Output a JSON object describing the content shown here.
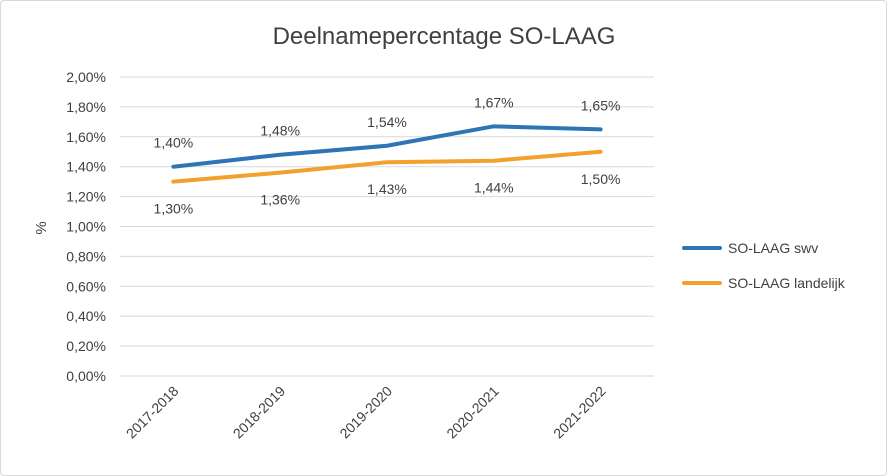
{
  "chart_data": {
    "type": "line",
    "title": "Deelnamepercentage SO-LAAG",
    "ylabel": "%",
    "xlabel": "",
    "categories": [
      "2017-2018",
      "2018-2019",
      "2019-2020",
      "2020-2021",
      "2021-2022"
    ],
    "ylim": [
      0,
      2.0
    ],
    "yticks": [
      0,
      0.2,
      0.4,
      0.6,
      0.8,
      1.0,
      1.2,
      1.4,
      1.6,
      1.8,
      2.0
    ],
    "ytick_labels": [
      "0,00%",
      "0,20%",
      "0,40%",
      "0,60%",
      "0,80%",
      "1,00%",
      "1,20%",
      "1,40%",
      "1,60%",
      "1,80%",
      "2,00%"
    ],
    "grid": true,
    "legend_position": "right",
    "series": [
      {
        "name": "SO-LAAG swv",
        "color": "#2e75b6",
        "values": [
          1.4,
          1.48,
          1.54,
          1.67,
          1.65
        ],
        "labels": [
          "1,40%",
          "1,48%",
          "1,54%",
          "1,67%",
          "1,65%"
        ],
        "label_position": "above"
      },
      {
        "name": "SO-LAAG landelijk",
        "color": "#f4a02c",
        "values": [
          1.3,
          1.36,
          1.43,
          1.44,
          1.5
        ],
        "labels": [
          "1,30%",
          "1,36%",
          "1,43%",
          "1,44%",
          "1,50%"
        ],
        "label_position": "below"
      }
    ]
  }
}
